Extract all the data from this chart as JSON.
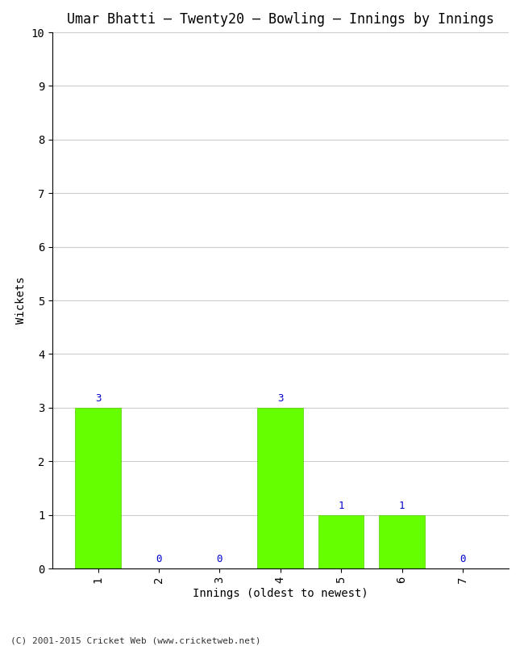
{
  "title": "Umar Bhatti – Twenty20 – Bowling – Innings by Innings",
  "xlabel": "Innings (oldest to newest)",
  "ylabel": "Wickets",
  "categories": [
    "1",
    "2",
    "3",
    "4",
    "5",
    "6",
    "7"
  ],
  "values": [
    3,
    0,
    0,
    3,
    1,
    1,
    0
  ],
  "bar_color": "#66ff00",
  "bar_edge_color": "#55cc00",
  "ylim": [
    0,
    10
  ],
  "yticks": [
    0,
    1,
    2,
    3,
    4,
    5,
    6,
    7,
    8,
    9,
    10
  ],
  "title_fontsize": 12,
  "axis_label_fontsize": 10,
  "tick_fontsize": 10,
  "annotation_fontsize": 9,
  "annotation_color": "#0000cc",
  "background_color": "#ffffff",
  "grid_color": "#cccccc",
  "footer": "(C) 2001-2015 Cricket Web (www.cricketweb.net)"
}
